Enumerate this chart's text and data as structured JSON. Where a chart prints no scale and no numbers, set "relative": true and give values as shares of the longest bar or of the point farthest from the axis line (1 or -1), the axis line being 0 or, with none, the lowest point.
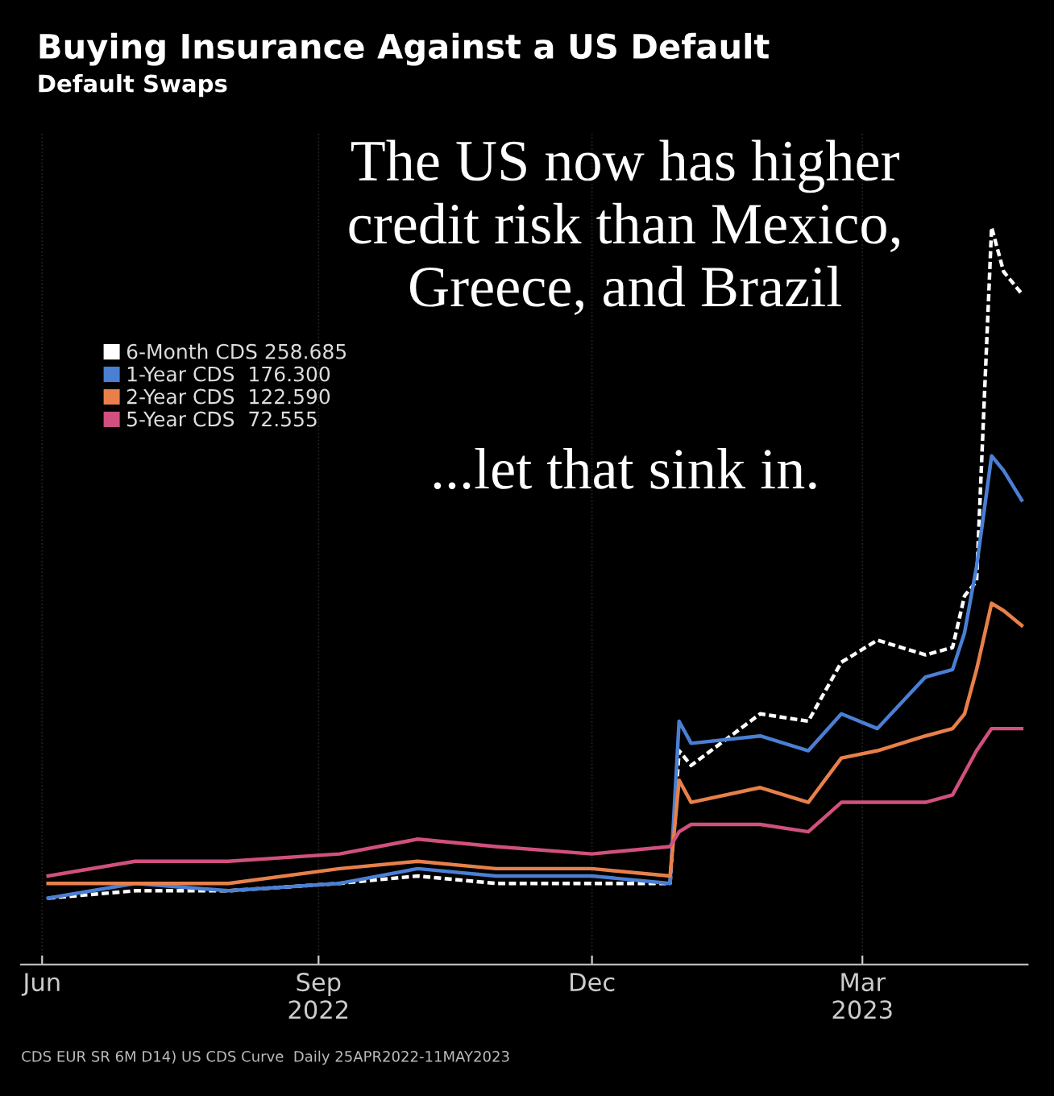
{
  "chart_data": {
    "type": "line",
    "title": "Buying Insurance Against a US Default",
    "subtitle": "Default Swaps",
    "annotations": [
      "The US now has higher\ncredit risk than Mexico,\nGreece, and Brazil",
      "...let that sink in.",
      "CDS EUR SR 6M D14) US CDS Curve  Daily 25APR2022-11MAY2023"
    ],
    "x": [
      "2022-06-03",
      "2022-07-02",
      "2022-08-02",
      "2022-09-08",
      "2022-10-04",
      "2022-10-30",
      "2022-12-01",
      "2022-12-27",
      "2022-12-30",
      "2023-01-03",
      "2023-01-26",
      "2023-02-11",
      "2023-02-22",
      "2023-03-06",
      "2023-03-22",
      "2023-03-31",
      "2023-04-04",
      "2023-04-08",
      "2023-04-13",
      "2023-04-17",
      "2023-04-23"
    ],
    "relative": true,
    "xlim": [
      "2022-05-25",
      "2023-04-25"
    ],
    "xticks": [
      {
        "value": "2022-06-01",
        "label": "Jun"
      },
      {
        "value": "2022-09-01",
        "label": "Sep\n2022"
      },
      {
        "value": "2022-12-01",
        "label": "Dec"
      },
      {
        "value": "2023-03-01",
        "label": "Mar\n2023"
      }
    ],
    "grid": true,
    "legend": "top left",
    "series": [
      {
        "name": "6-Month CDS 258.685",
        "color": "#ffffff",
        "line_style": "dashed",
        "values": [
          0.09,
          0.1,
          0.1,
          0.11,
          0.12,
          0.11,
          0.11,
          0.11,
          0.29,
          0.27,
          0.34,
          0.33,
          0.41,
          0.44,
          0.42,
          0.43,
          0.5,
          0.52,
          1.0,
          0.94,
          0.91
        ]
      },
      {
        "name": "1-Year CDS  176.300",
        "color": "#4a7fd4",
        "values": [
          0.09,
          0.11,
          0.1,
          0.11,
          0.13,
          0.12,
          0.12,
          0.11,
          0.33,
          0.3,
          0.31,
          0.29,
          0.34,
          0.32,
          0.39,
          0.4,
          0.45,
          0.54,
          0.69,
          0.67,
          0.63
        ]
      },
      {
        "name": "2-Year CDS  122.590",
        "color": "#e8804a",
        "values": [
          0.11,
          0.11,
          0.11,
          0.13,
          0.14,
          0.13,
          0.13,
          0.12,
          0.25,
          0.22,
          0.24,
          0.22,
          0.28,
          0.29,
          0.31,
          0.32,
          0.34,
          0.4,
          0.49,
          0.48,
          0.46
        ]
      },
      {
        "name": "5-Year CDS  72.555",
        "color": "#d0507f",
        "values": [
          0.12,
          0.14,
          0.14,
          0.15,
          0.17,
          0.16,
          0.15,
          0.16,
          0.18,
          0.19,
          0.19,
          0.18,
          0.22,
          0.22,
          0.22,
          0.23,
          0.26,
          0.29,
          0.32,
          0.32,
          0.32
        ]
      }
    ]
  }
}
